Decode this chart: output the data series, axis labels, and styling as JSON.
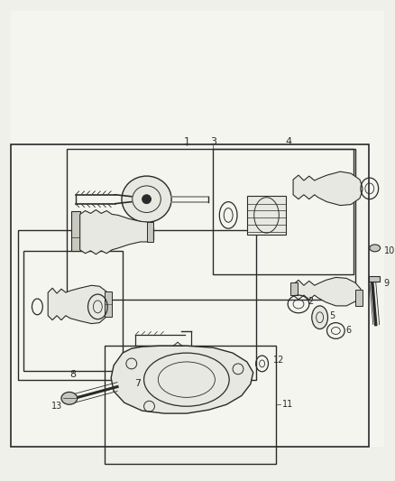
{
  "bg_color": "#f0f0eb",
  "lc": "#2a2a2a",
  "fc_part": "#e8e8e2",
  "fc_dark": "#c8c8c0",
  "fc_white": "#f5f5f0"
}
